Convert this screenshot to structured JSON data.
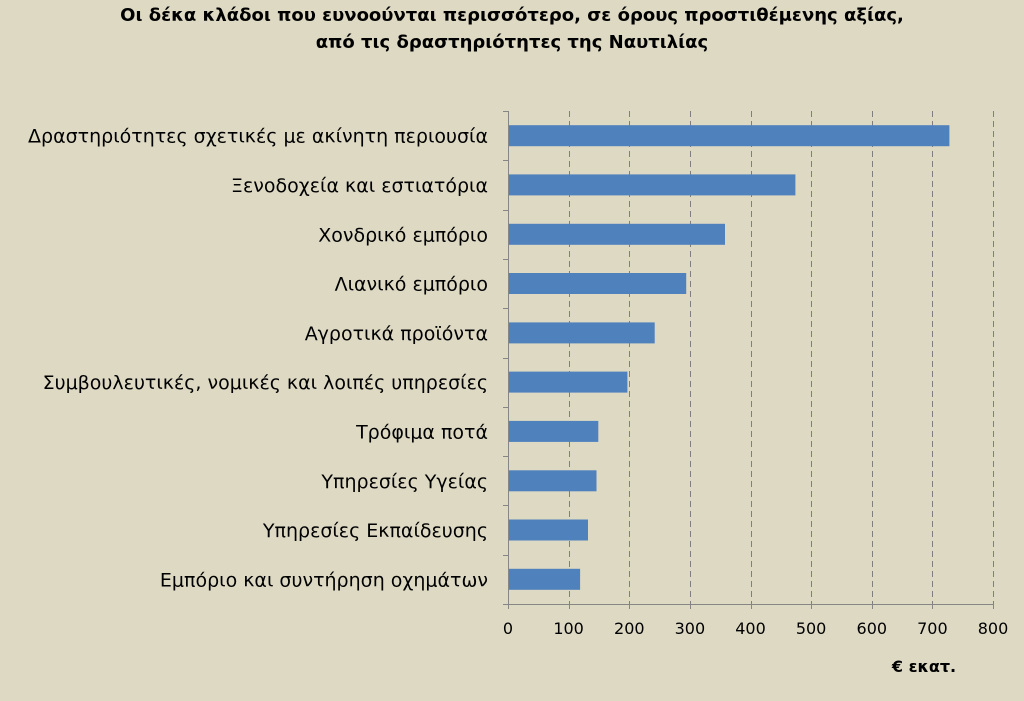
{
  "title": {
    "line1": "Οι δέκα κλάδοι  που ευνοούνται περισσότερο, σε όρους προστιθέμενης αξίας,",
    "line2": "από τις δραστηριότητες της Ναυτιλίας"
  },
  "colors": {
    "background": "#ddd9c3",
    "bar": "#4f81bd",
    "grid": "#7f7f7f",
    "axis": "#868686"
  },
  "chart_data": {
    "type": "bar",
    "orientation": "horizontal",
    "title": "Οι δέκα κλάδοι  που ευνοούνται περισσότερο, σε όρους προστιθέμενης αξίας, από τις δραστηριότητες της Ναυτιλίας",
    "categories": [
      "Δραστηριότητες σχετικές με ακίνητη περιουσία",
      "Ξενοδοχεία και εστιατόρια",
      "Χονδρικό εμπόριο",
      "Λιανικό εμπόριο",
      "Αγροτικά προϊόντα",
      "Συμβουλευτικές, νομικές και λοιπές υπηρεσίες",
      "Τρόφιμα ποτά",
      "Υπηρεσίες Υγείας",
      "Υπηρεσίες Εκπαίδευσης",
      "Εμπόριο και συντήρηση οχημάτων"
    ],
    "values": [
      728,
      474,
      358,
      294,
      242,
      197,
      149,
      146,
      132,
      119
    ],
    "xlim": [
      0,
      800
    ],
    "ticks": [
      "0",
      "100",
      "200",
      "300",
      "400",
      "500",
      "600",
      "700",
      "800"
    ],
    "xlabel": "€ εκατ.",
    "ylabel": "",
    "grid": "vertical dashed",
    "legend": "none"
  }
}
